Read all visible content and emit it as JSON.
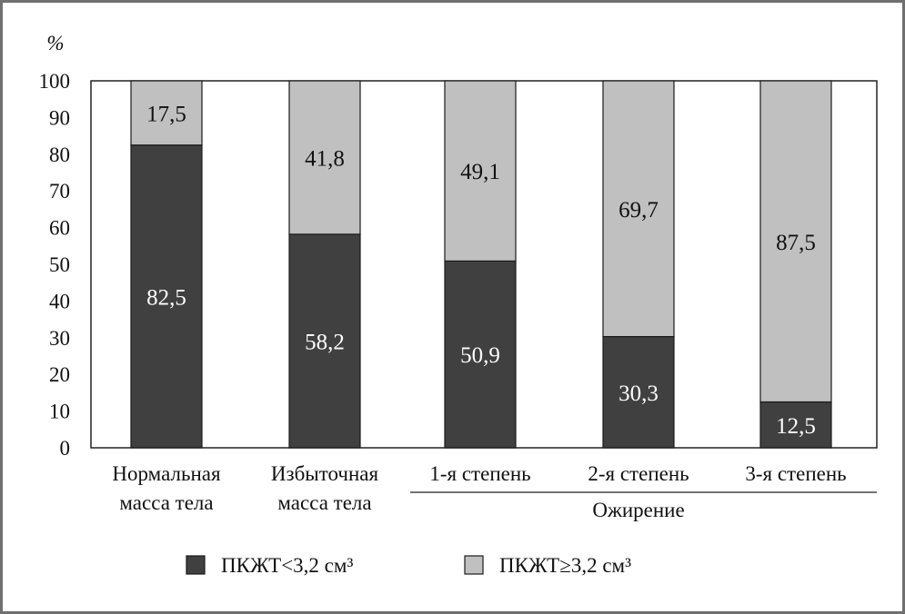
{
  "chart_data": {
    "type": "bar",
    "stacked": true,
    "y_unit": "%",
    "yticks": [
      "0",
      "10",
      "20",
      "30",
      "40",
      "50",
      "60",
      "70",
      "80",
      "90",
      "100"
    ],
    "ylim": [
      0,
      100
    ],
    "categories": [
      [
        "Нормальная",
        "масса тела"
      ],
      [
        "Избыточная",
        "масса тела"
      ],
      [
        "1-я степень"
      ],
      [
        "2-я степень"
      ],
      [
        "3-я степень"
      ]
    ],
    "group_label": "Ожирение",
    "group_covers": [
      2,
      4
    ],
    "series": [
      {
        "name": "ПКЖТ<3,2 см³",
        "color": "#404040",
        "label_color": "#ffffff",
        "values": [
          82.5,
          58.2,
          50.9,
          30.3,
          12.5
        ],
        "labels": [
          "82,5",
          "58,2",
          "50,9",
          "30,3",
          "12,5"
        ]
      },
      {
        "name": "ПКЖТ≥3,2 см³",
        "color": "#c0c0c0",
        "label_color": "#111111",
        "values": [
          17.5,
          41.8,
          49.1,
          69.7,
          87.5
        ],
        "labels": [
          "17,5",
          "41,8",
          "49,1",
          "69,7",
          "87,5"
        ]
      }
    ],
    "grid": false,
    "legend_position": "bottom"
  }
}
